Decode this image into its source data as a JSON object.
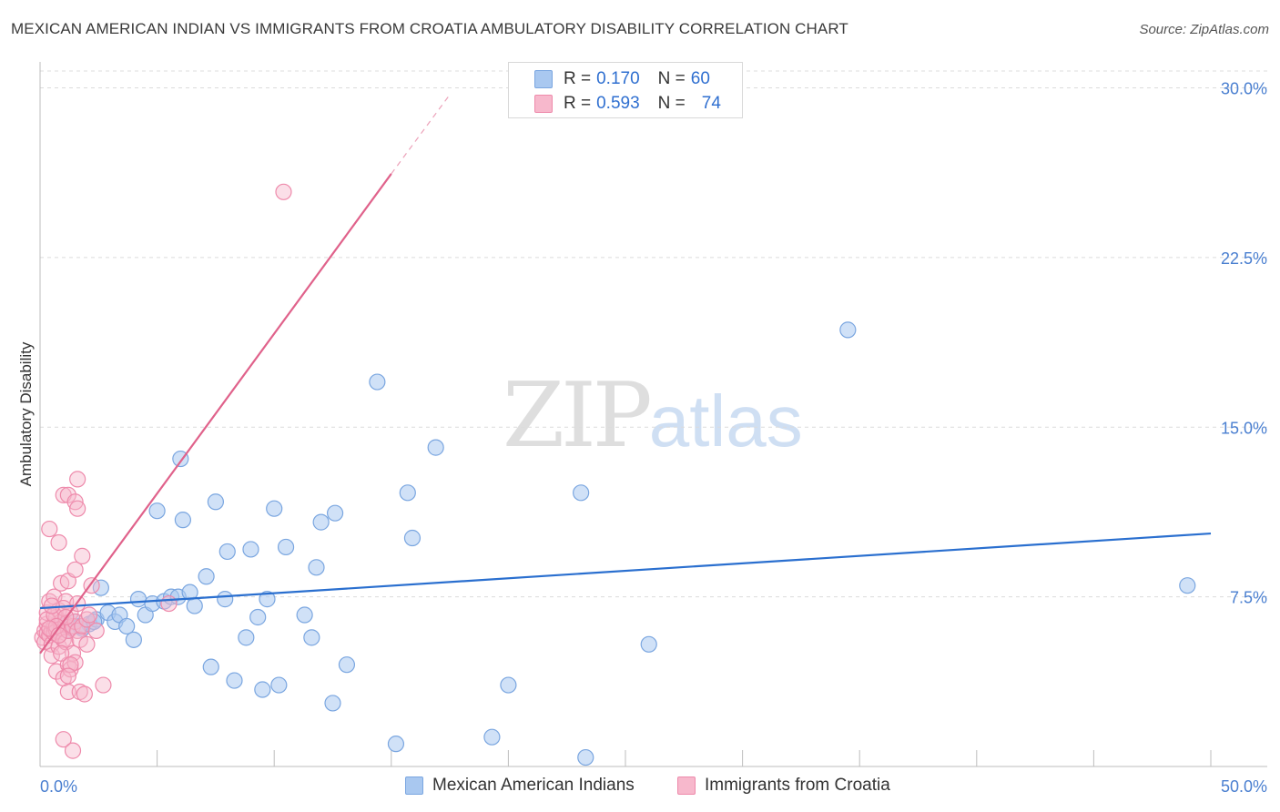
{
  "title": "MEXICAN AMERICAN INDIAN VS IMMIGRANTS FROM CROATIA AMBULATORY DISABILITY CORRELATION CHART",
  "source": "Source: ZipAtlas.com",
  "watermark": {
    "zip": "ZIP",
    "atlas": "atlas"
  },
  "legend": {
    "rows": [
      {
        "r_label": "R =",
        "r_value": "0.170",
        "n_label": "N =",
        "n_value": "60"
      },
      {
        "r_label": "R =",
        "r_value": "0.593",
        "n_label": "N =",
        "n_value": "74"
      }
    ]
  },
  "colors": {
    "blue_fill": "#a9c8f0",
    "blue_stroke": "#7aa6e0",
    "blue_line": "#2a6fcf",
    "pink_fill": "#f7b8cc",
    "pink_stroke": "#ee8aab",
    "pink_line": "#e0628b",
    "tick_text": "#4a7fd0"
  },
  "chart_data": {
    "type": "scatter",
    "title": "MEXICAN AMERICAN INDIAN VS IMMIGRANTS FROM CROATIA AMBULATORY DISABILITY CORRELATION CHART",
    "xlabel": "",
    "ylabel": "Ambulatory Disability",
    "xlim": [
      0,
      50
    ],
    "ylim": [
      0,
      30
    ],
    "x_tick_labels": [
      "0.0%",
      "50.0%"
    ],
    "y_ticks": [
      7.5,
      15.0,
      22.5,
      30.0
    ],
    "y_tick_labels": [
      "7.5%",
      "15.0%",
      "22.5%",
      "30.0%"
    ],
    "grid": true,
    "series": [
      {
        "name": "Mexican American Indians",
        "R": 0.17,
        "N": 60,
        "trend": {
          "x0": 0.0,
          "y0": 7.0,
          "x1": 50.0,
          "y1": 10.3
        },
        "points": [
          [
            0.6,
            6.1
          ],
          [
            0.9,
            6.3
          ],
          [
            1.2,
            6.0
          ],
          [
            1.5,
            6.4
          ],
          [
            1.8,
            6.1
          ],
          [
            2.1,
            6.3
          ],
          [
            2.4,
            6.5
          ],
          [
            2.6,
            7.9
          ],
          [
            2.9,
            6.8
          ],
          [
            3.2,
            6.4
          ],
          [
            3.4,
            6.7
          ],
          [
            3.7,
            6.2
          ],
          [
            4.0,
            5.6
          ],
          [
            4.2,
            7.4
          ],
          [
            4.5,
            6.7
          ],
          [
            4.8,
            7.2
          ],
          [
            5.0,
            11.3
          ],
          [
            5.3,
            7.3
          ],
          [
            5.6,
            7.5
          ],
          [
            5.9,
            7.5
          ],
          [
            6.0,
            13.6
          ],
          [
            6.1,
            10.9
          ],
          [
            6.4,
            7.7
          ],
          [
            6.6,
            7.1
          ],
          [
            7.1,
            8.4
          ],
          [
            7.3,
            4.4
          ],
          [
            7.5,
            11.7
          ],
          [
            7.9,
            7.4
          ],
          [
            8.0,
            9.5
          ],
          [
            8.3,
            3.8
          ],
          [
            8.8,
            5.7
          ],
          [
            9.0,
            9.6
          ],
          [
            9.3,
            6.6
          ],
          [
            9.5,
            3.4
          ],
          [
            9.7,
            7.4
          ],
          [
            10.0,
            11.4
          ],
          [
            10.2,
            3.6
          ],
          [
            10.5,
            9.7
          ],
          [
            11.3,
            6.7
          ],
          [
            11.6,
            5.7
          ],
          [
            11.8,
            8.8
          ],
          [
            12.0,
            10.8
          ],
          [
            12.5,
            2.8
          ],
          [
            12.6,
            11.2
          ],
          [
            13.1,
            4.5
          ],
          [
            14.4,
            17.0
          ],
          [
            15.2,
            1.0
          ],
          [
            15.7,
            12.1
          ],
          [
            15.9,
            10.1
          ],
          [
            16.9,
            14.1
          ],
          [
            19.3,
            1.3
          ],
          [
            20.0,
            3.6
          ],
          [
            23.1,
            12.1
          ],
          [
            23.3,
            0.4
          ],
          [
            26.0,
            5.4
          ],
          [
            34.5,
            19.3
          ],
          [
            49.0,
            8.0
          ],
          [
            1.0,
            6.2
          ],
          [
            1.7,
            6.2
          ],
          [
            2.3,
            6.4
          ]
        ]
      },
      {
        "name": "Immigrants from Croatia",
        "R": 0.593,
        "N": 74,
        "trend": {
          "x0": 0.0,
          "y0": 5.0,
          "x1": 15.0,
          "y1": 26.2,
          "dash_x1": 17.5,
          "dash_y1": 29.7
        },
        "points": [
          [
            0.1,
            5.7
          ],
          [
            0.2,
            6.0
          ],
          [
            0.2,
            5.5
          ],
          [
            0.3,
            6.3
          ],
          [
            0.3,
            5.9
          ],
          [
            0.3,
            6.8
          ],
          [
            0.4,
            5.8
          ],
          [
            0.4,
            7.3
          ],
          [
            0.4,
            10.5
          ],
          [
            0.5,
            6.0
          ],
          [
            0.5,
            5.4
          ],
          [
            0.5,
            4.9
          ],
          [
            0.6,
            6.2
          ],
          [
            0.6,
            7.5
          ],
          [
            0.6,
            5.9
          ],
          [
            0.7,
            6.0
          ],
          [
            0.7,
            6.6
          ],
          [
            0.7,
            4.2
          ],
          [
            0.8,
            5.8
          ],
          [
            0.8,
            9.9
          ],
          [
            0.8,
            5.3
          ],
          [
            0.8,
            6.9
          ],
          [
            0.9,
            6.1
          ],
          [
            0.9,
            8.1
          ],
          [
            0.9,
            6.4
          ],
          [
            1.0,
            12.0
          ],
          [
            1.0,
            5.6
          ],
          [
            1.0,
            3.9
          ],
          [
            1.0,
            1.2
          ],
          [
            1.1,
            7.3
          ],
          [
            1.1,
            6.3
          ],
          [
            1.1,
            5.5
          ],
          [
            1.2,
            12.0
          ],
          [
            1.2,
            8.2
          ],
          [
            1.2,
            6.0
          ],
          [
            1.2,
            4.5
          ],
          [
            1.2,
            3.3
          ],
          [
            1.3,
            6.8
          ],
          [
            1.3,
            4.3
          ],
          [
            1.4,
            6.2
          ],
          [
            1.4,
            5.0
          ],
          [
            1.4,
            0.7
          ],
          [
            1.5,
            11.7
          ],
          [
            1.5,
            8.7
          ],
          [
            1.5,
            6.4
          ],
          [
            1.5,
            4.6
          ],
          [
            1.6,
            12.7
          ],
          [
            1.6,
            11.4
          ],
          [
            1.6,
            7.2
          ],
          [
            1.6,
            6.0
          ],
          [
            1.7,
            5.6
          ],
          [
            1.7,
            3.3
          ],
          [
            1.8,
            9.3
          ],
          [
            1.8,
            6.2
          ],
          [
            1.9,
            3.2
          ],
          [
            2.0,
            6.5
          ],
          [
            2.0,
            5.4
          ],
          [
            2.1,
            6.7
          ],
          [
            2.2,
            8.0
          ],
          [
            2.4,
            6.0
          ],
          [
            2.7,
            3.6
          ],
          [
            10.4,
            25.4
          ],
          [
            5.5,
            7.2
          ],
          [
            0.3,
            6.5
          ],
          [
            0.6,
            6.7
          ],
          [
            0.9,
            5.0
          ],
          [
            1.0,
            7.0
          ],
          [
            1.1,
            6.6
          ],
          [
            1.3,
            4.5
          ],
          [
            0.5,
            7.1
          ],
          [
            0.7,
            6.2
          ],
          [
            0.4,
            6.1
          ],
          [
            1.2,
            4.0
          ],
          [
            0.8,
            5.8
          ]
        ]
      }
    ]
  },
  "bottom_legend": [
    "Mexican American Indians",
    "Immigrants from Croatia"
  ]
}
